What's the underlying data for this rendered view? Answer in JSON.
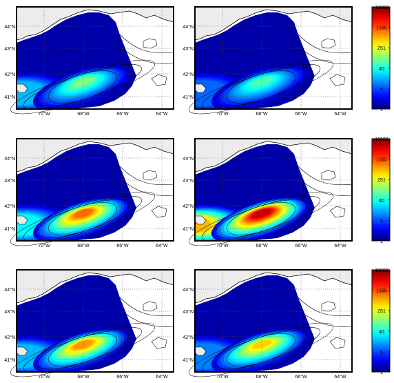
{
  "panels": [
    {
      "id": "top-left",
      "bank_level": 0.45,
      "shelf_level": 0.25
    },
    {
      "id": "top-right",
      "bank_level": 0.4,
      "shelf_level": 0.15
    },
    {
      "id": "middle-left",
      "bank_level": 0.72,
      "shelf_level": 0.3
    },
    {
      "id": "middle-right",
      "bank_level": 0.88,
      "shelf_level": 0.55
    },
    {
      "id": "bottom-left",
      "bank_level": 0.68,
      "shelf_level": 0.25
    },
    {
      "id": "bottom-right",
      "bank_level": 0.62,
      "shelf_level": 0.2
    }
  ],
  "axes": {
    "lon_labels": [
      "70°W",
      "68°W",
      "66°W",
      "64°W"
    ],
    "lat_labels": [
      "44°N",
      "43°N",
      "42°N",
      "41°N"
    ]
  },
  "colorbar": {
    "tick_labels": [
      "10000",
      "1585",
      "251",
      "40",
      "6",
      "1"
    ],
    "scale": "log",
    "range": [
      1,
      10000
    ],
    "colormap": "jet"
  },
  "colors": {
    "land": "#ececec",
    "coast": "#000000",
    "low": "#00008f",
    "high": "#800000"
  }
}
